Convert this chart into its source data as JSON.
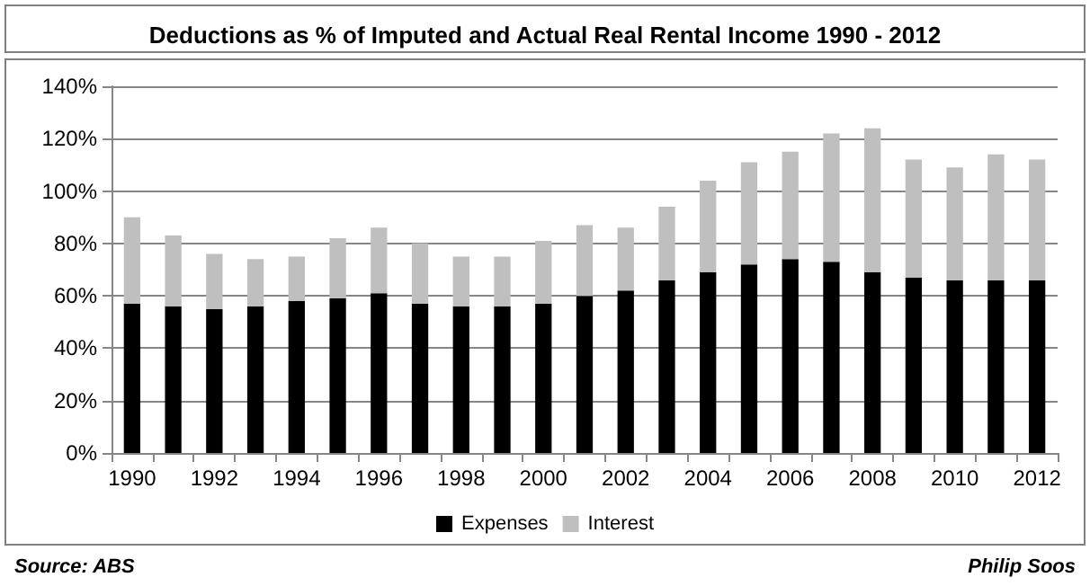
{
  "chart_data": {
    "type": "bar",
    "title": "Deductions as % of Imputed and Actual Real Rental Income 1990 - 2012",
    "categories": [
      "1990",
      null,
      "1992",
      null,
      "1994",
      null,
      "1996",
      null,
      "1998",
      null,
      "2000",
      null,
      "2002",
      null,
      "2004",
      null,
      "2006",
      null,
      "2008",
      null,
      "2010",
      null,
      "2012"
    ],
    "stacked": true,
    "series": [
      {
        "name": "Expenses",
        "color": "#000000",
        "values": [
          57,
          56,
          55,
          56,
          58,
          59,
          61,
          57,
          56,
          56,
          57,
          60,
          62,
          66,
          69,
          72,
          74,
          73,
          69,
          67,
          66,
          66,
          66
        ]
      },
      {
        "name": "Interest",
        "color": "#bfbfbf",
        "values": [
          33,
          27,
          21,
          18,
          17,
          23,
          25,
          23,
          19,
          19,
          24,
          27,
          24,
          28,
          35,
          39,
          41,
          49,
          55,
          45,
          43,
          48,
          46
        ]
      }
    ],
    "ylim": [
      0,
      140
    ],
    "yticks": [
      {
        "value": 0,
        "label": "0%"
      },
      {
        "value": 20,
        "label": "20%"
      },
      {
        "value": 40,
        "label": "40%"
      },
      {
        "value": 60,
        "label": "60%"
      },
      {
        "value": 80,
        "label": "80%"
      },
      {
        "value": 100,
        "label": "100%"
      },
      {
        "value": 120,
        "label": "120%"
      },
      {
        "value": 140,
        "label": "140%"
      }
    ],
    "grid": "y",
    "legend": "bottom",
    "annotations": [
      "Source: ABS",
      "Philip Soos"
    ]
  }
}
